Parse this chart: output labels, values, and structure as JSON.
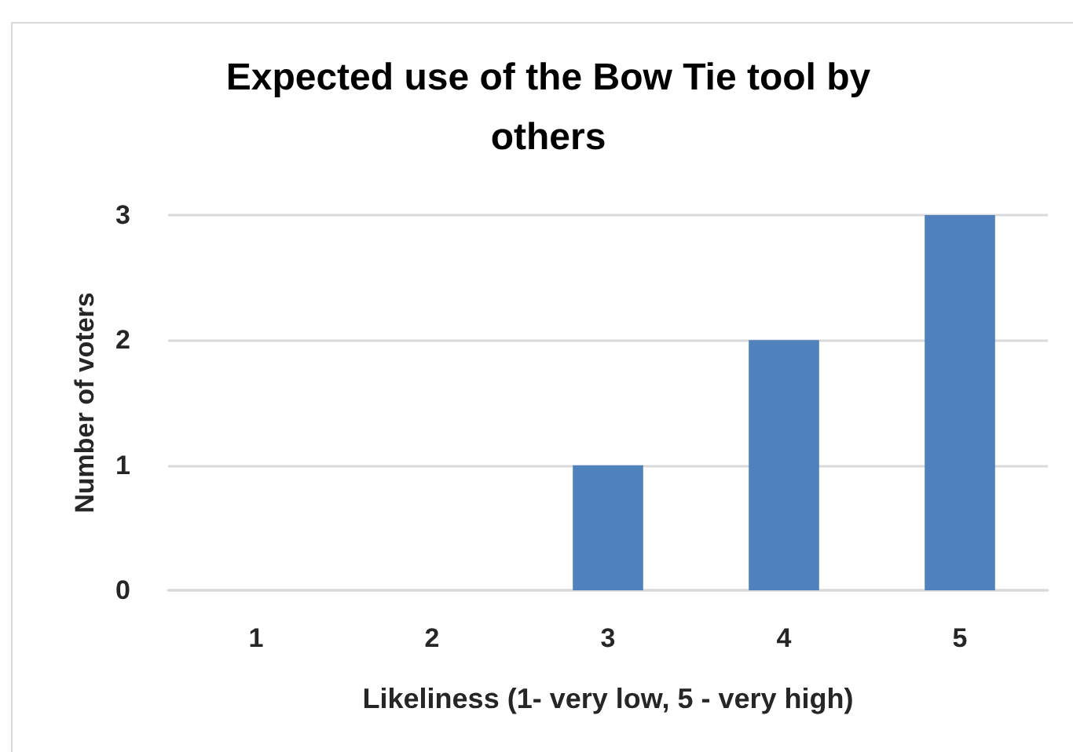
{
  "chart_data": {
    "type": "bar",
    "title": "Expected use of the Bow Tie tool by others",
    "xlabel": "Likeliness (1- very low, 5 - very high)",
    "ylabel": "Number of voters",
    "categories": [
      "1",
      "2",
      "3",
      "4",
      "5"
    ],
    "values": [
      0,
      0,
      1,
      2,
      3
    ],
    "color": "#4f81bd",
    "ylim": [
      0,
      3
    ],
    "yticks": [
      0,
      1,
      2,
      3
    ],
    "grid": "y"
  }
}
